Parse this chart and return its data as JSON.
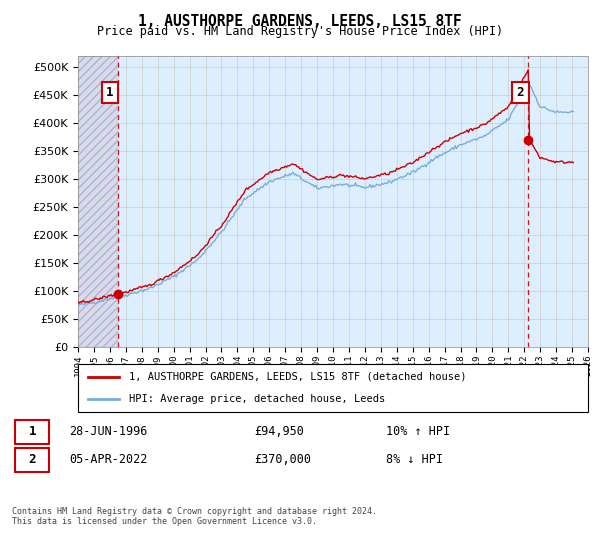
{
  "title": "1, AUSTHORPE GARDENS, LEEDS, LS15 8TF",
  "subtitle": "Price paid vs. HM Land Registry's House Price Index (HPI)",
  "legend_line1": "1, AUSTHORPE GARDENS, LEEDS, LS15 8TF (detached house)",
  "legend_line2": "HPI: Average price, detached house, Leeds",
  "annotation1_label": "1",
  "annotation1_date": "28-JUN-1996",
  "annotation1_price": "£94,950",
  "annotation1_hpi": "10% ↑ HPI",
  "annotation2_label": "2",
  "annotation2_date": "05-APR-2022",
  "annotation2_price": "£370,000",
  "annotation2_hpi": "8% ↓ HPI",
  "footer": "Contains HM Land Registry data © Crown copyright and database right 2024.\nThis data is licensed under the Open Government Licence v3.0.",
  "sale1_year": 1996.49,
  "sale1_value": 94950,
  "sale2_year": 2022.26,
  "sale2_value": 370000,
  "plot_color_red": "#cc0000",
  "plot_color_blue": "#7aadda",
  "grid_color": "#cccccc",
  "bg_color": "#ddeeff",
  "ylim_max": 520000,
  "ylim_min": 0,
  "xmin": 1994,
  "xmax": 2026
}
